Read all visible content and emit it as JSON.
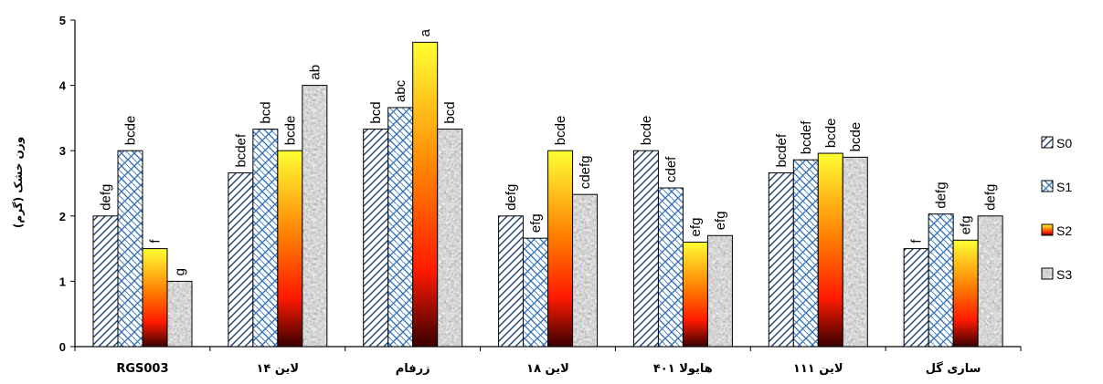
{
  "chart_data": {
    "type": "bar",
    "title": "",
    "xlabel": "",
    "ylabel": "وزن خشک (گرم)",
    "ylim": [
      0,
      5
    ],
    "yticks": [
      "0",
      "1",
      "2",
      "3",
      "4",
      "5"
    ],
    "categories": [
      "RGS003",
      "لاین ۱۴",
      "زرفام",
      "لاین ۱۸",
      "هایولا ۴۰۱",
      "لاین ۱۱۱",
      "ساری گل"
    ],
    "series": [
      {
        "name": "S0",
        "values": [
          2.0,
          2.66,
          3.33,
          2.0,
          3.0,
          2.66,
          1.5
        ],
        "labels": [
          "defg",
          "bcdef",
          "bcd",
          "defg",
          "bcde",
          "bcdef",
          "f"
        ]
      },
      {
        "name": "S1",
        "values": [
          3.0,
          3.33,
          3.66,
          1.66,
          2.43,
          2.86,
          2.03
        ],
        "labels": [
          "bcde",
          "bcd",
          "abc",
          "efg",
          "cdef",
          "bcdef",
          "defg"
        ]
      },
      {
        "name": "S2",
        "values": [
          1.5,
          3.0,
          4.66,
          3.0,
          1.6,
          2.96,
          1.63
        ],
        "labels": [
          "f",
          "bcde",
          "a",
          "bcde",
          "efg",
          "bcde",
          "efg"
        ]
      },
      {
        "name": "S3",
        "values": [
          1.0,
          4.0,
          3.33,
          2.33,
          1.7,
          2.9,
          2.0
        ],
        "labels": [
          "g",
          "ab",
          "bcd",
          "cdefg",
          "efg",
          "bcde",
          "defg"
        ]
      }
    ],
    "legend_position": "right",
    "grid": false
  },
  "colors": {
    "s0_hatch": "#1f3f73",
    "s1_hatch": "#2f6fb5",
    "s2_top": "#ffff33",
    "s2_mid": "#ff2200",
    "s2_bottom": "#3a0000",
    "s3_base": "#b0b0b0"
  }
}
